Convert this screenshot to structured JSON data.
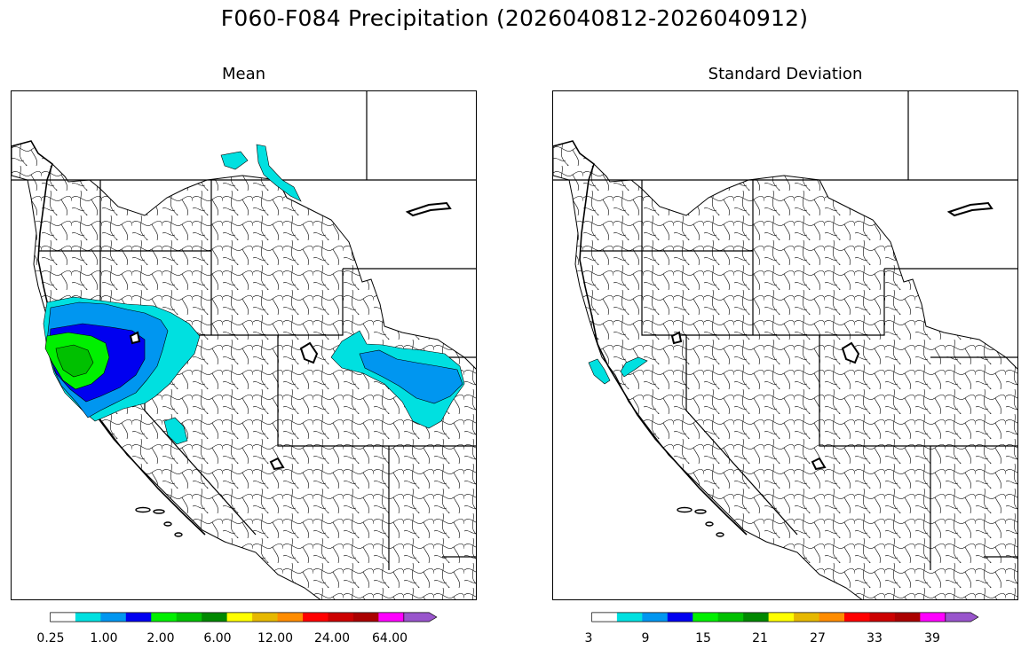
{
  "figure": {
    "title": "F060-F084 Precipitation (2026040812-2026040912)"
  },
  "panels": [
    {
      "title": "Mean",
      "colorbar": {
        "colors": [
          "#ffffff",
          "#00e0e0",
          "#0096f0",
          "#0000f0",
          "#00f000",
          "#00c000",
          "#008800",
          "#ffff00",
          "#e6b800",
          "#ff8c00",
          "#ff0000",
          "#cc0000",
          "#aa0000",
          "#ff00ff",
          "#9955cc"
        ],
        "tick_labels": [
          "0.25",
          "1.00",
          "2.00",
          "6.00",
          "12.00",
          "24.00",
          "64.00"
        ],
        "extend": "max"
      }
    },
    {
      "title": "Standard Deviation",
      "colorbar": {
        "colors": [
          "#ffffff",
          "#00e0e0",
          "#0096f0",
          "#0000f0",
          "#00f000",
          "#00c000",
          "#008800",
          "#ffff00",
          "#e6b800",
          "#ff8c00",
          "#ff0000",
          "#cc0000",
          "#aa0000",
          "#ff00ff",
          "#9955cc"
        ],
        "tick_labels": [
          "3",
          "9",
          "15",
          "21",
          "27",
          "33",
          "39"
        ],
        "extend": "max"
      }
    }
  ]
}
